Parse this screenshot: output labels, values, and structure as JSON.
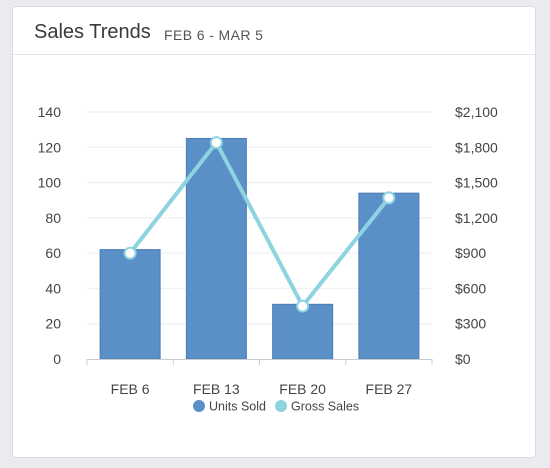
{
  "card": {
    "title": "Sales Trends",
    "subtitle": "FEB 6 - MAR 5"
  },
  "chart_data": {
    "type": "bar",
    "title": "Sales Trends",
    "subtitle": "FEB 6 - MAR 5",
    "categories": [
      "FEB 6",
      "FEB 13",
      "FEB 20",
      "FEB 27"
    ],
    "series": [
      {
        "name": "Units Sold",
        "type": "bar",
        "axis": "left",
        "color": "#5b8fc7",
        "values": [
          62,
          125,
          31,
          94
        ]
      },
      {
        "name": "Gross Sales",
        "type": "line",
        "axis": "right",
        "color": "#8dd3e0",
        "values": [
          900,
          1840,
          450,
          1370
        ]
      }
    ],
    "y_left": {
      "min": 0,
      "max": 140,
      "ticks": [
        0,
        20,
        40,
        60,
        80,
        100,
        120,
        140
      ],
      "tick_labels": [
        "0",
        "20",
        "40",
        "60",
        "80",
        "100",
        "120",
        "140"
      ]
    },
    "y_right": {
      "min": 0,
      "max": 2100,
      "ticks": [
        0,
        300,
        600,
        900,
        1200,
        1500,
        1800,
        2100
      ],
      "tick_labels": [
        "$0",
        "$300",
        "$600",
        "$900",
        "$1,200",
        "$1,500",
        "$1,800",
        "$2,100"
      ]
    },
    "grid": true,
    "legend": {
      "position": "bottom",
      "entries": [
        "Units Sold",
        "Gross Sales"
      ]
    },
    "colors": {
      "bar_fill": "#5b8fc7",
      "bar_stroke": "#4a7cb5",
      "line": "#8dd3e0",
      "point_fill": "#ffffff",
      "grid": "#eceef0",
      "axis": "#c8ccd2"
    }
  }
}
